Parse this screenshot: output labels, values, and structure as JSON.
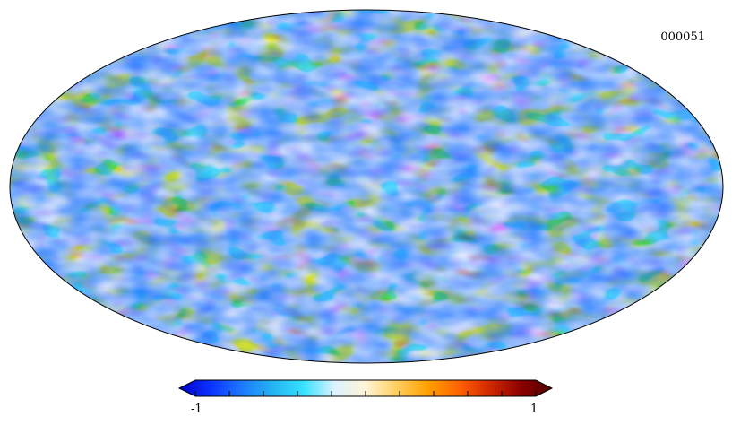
{
  "map": {
    "label": "000051",
    "projection": "mollweide",
    "colormap": [
      "#0000c8",
      "#0a32ff",
      "#1e78ff",
      "#22b4f0",
      "#35e2ff",
      "#dcf2ff",
      "#fff4d6",
      "#ffd060",
      "#ffa000",
      "#ff6400",
      "#d22800",
      "#8c0000",
      "#500000"
    ]
  },
  "colorbar": {
    "min_label": "-1",
    "max_label": "1",
    "min": -1,
    "max": 1,
    "ticks": 10
  }
}
